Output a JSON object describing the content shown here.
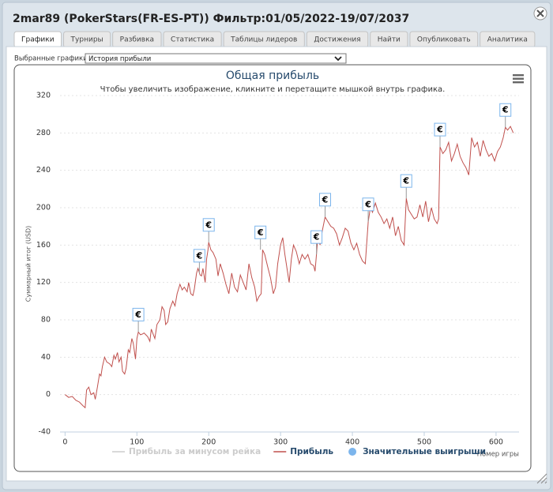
{
  "window": {
    "title": "2mar89 (PokerStars(FR-ES-PT)) Фильтр:01/05/2022-19/07/2037"
  },
  "tabs": [
    "Графики",
    "Турниры",
    "Разбивка",
    "Статистика",
    "Таблицы лидеров",
    "Достижения",
    "Найти",
    "Опубликовать",
    "Аналитика"
  ],
  "active_tab": 0,
  "selector": {
    "label": "Выбранные графики:",
    "value": "История прибыли"
  },
  "chart_data": {
    "type": "line",
    "title": "Общая прибыль",
    "subtitle": "Чтобы увеличить изображение, кликните и перетащите мышкой внутрь графика.",
    "x_label": "Номер игры",
    "y_label": "Суммарный итог (USD)",
    "xlim": [
      -7,
      632
    ],
    "xticks": [
      0,
      100,
      200,
      300,
      400,
      500,
      600
    ],
    "ylim": [
      -40,
      320
    ],
    "yticks": [
      -40,
      0,
      40,
      80,
      120,
      160,
      200,
      240,
      280,
      320
    ],
    "grid": true,
    "series": [
      {
        "name": "Прибыль за минусом рейка",
        "color": "#cccccc",
        "visible": false,
        "x": [],
        "values": []
      },
      {
        "name": "Прибыль",
        "color": "#c0504d",
        "visible": true,
        "x": [
          0,
          5,
          10,
          15,
          20,
          25,
          28,
          30,
          33,
          36,
          40,
          42,
          45,
          48,
          50,
          52,
          55,
          58,
          62,
          65,
          68,
          70,
          73,
          75,
          78,
          80,
          83,
          85,
          88,
          90,
          93,
          95,
          98,
          100,
          102,
          105,
          108,
          110,
          115,
          118,
          120,
          125,
          128,
          132,
          135,
          138,
          140,
          143,
          146,
          150,
          153,
          156,
          160,
          163,
          166,
          170,
          172,
          175,
          178,
          180,
          183,
          185,
          188,
          190,
          192,
          195,
          197,
          199,
          200,
          203,
          206,
          210,
          213,
          216,
          220,
          224,
          228,
          232,
          236,
          240,
          244,
          248,
          252,
          256,
          260,
          264,
          267,
          270,
          273,
          275,
          278,
          282,
          286,
          290,
          293,
          296,
          300,
          303,
          306,
          309,
          312,
          315,
          318,
          322,
          326,
          330,
          334,
          338,
          342,
          346,
          348,
          350,
          352,
          355,
          358,
          362,
          366,
          370,
          374,
          378,
          382,
          386,
          390,
          394,
          398,
          402,
          406,
          410,
          414,
          418,
          422,
          425,
          428,
          432,
          436,
          440,
          444,
          448,
          452,
          456,
          460,
          464,
          468,
          472,
          475,
          478,
          482,
          486,
          490,
          494,
          498,
          502,
          506,
          510,
          514,
          518,
          520,
          522,
          526,
          530,
          534,
          538,
          542,
          546,
          550,
          554,
          558,
          562,
          566,
          570,
          574,
          578,
          582,
          586,
          590,
          594,
          598,
          602,
          606,
          610,
          613,
          616,
          620,
          624
        ],
        "values": [
          0,
          -3,
          -2,
          -6,
          -8,
          -12,
          -14,
          5,
          8,
          0,
          2,
          -5,
          8,
          22,
          20,
          30,
          40,
          35,
          33,
          30,
          42,
          38,
          45,
          35,
          40,
          25,
          22,
          28,
          48,
          45,
          60,
          55,
          38,
          60,
          67,
          64,
          65,
          66,
          62,
          57,
          70,
          60,
          75,
          80,
          94,
          90,
          75,
          78,
          92,
          100,
          95,
          108,
          118,
          112,
          115,
          110,
          120,
          108,
          106,
          113,
          130,
          135,
          128,
          127,
          135,
          120,
          145,
          155,
          163,
          155,
          152,
          145,
          127,
          140,
          130,
          118,
          108,
          130,
          115,
          110,
          128,
          120,
          112,
          140,
          125,
          115,
          100,
          105,
          108,
          155,
          150,
          137,
          125,
          108,
          115,
          140,
          160,
          168,
          150,
          135,
          120,
          145,
          160,
          153,
          140,
          150,
          145,
          150,
          140,
          138,
          132,
          150,
          170,
          160,
          175,
          190,
          185,
          180,
          178,
          172,
          160,
          168,
          178,
          175,
          162,
          155,
          162,
          150,
          143,
          140,
          185,
          200,
          195,
          205,
          195,
          190,
          183,
          188,
          178,
          190,
          170,
          180,
          165,
          160,
          210,
          198,
          193,
          188,
          190,
          203,
          190,
          207,
          185,
          200,
          188,
          183,
          188,
          265,
          258,
          262,
          270,
          250,
          258,
          268,
          255,
          248,
          243,
          235,
          275,
          265,
          270,
          255,
          272,
          262,
          255,
          258,
          250,
          260,
          265,
          275,
          286,
          283,
          287,
          280
        ]
      },
      {
        "name": "Значительные выигрыши",
        "color": "#7cb5ec",
        "type": "scatter",
        "marker_label": "€",
        "visible": true,
        "x": [
          102,
          187,
          200,
          272,
          350,
          362,
          422,
          475,
          522,
          613
        ],
        "values": [
          67,
          130,
          163,
          155,
          150,
          190,
          185,
          210,
          265,
          286
        ]
      }
    ]
  }
}
